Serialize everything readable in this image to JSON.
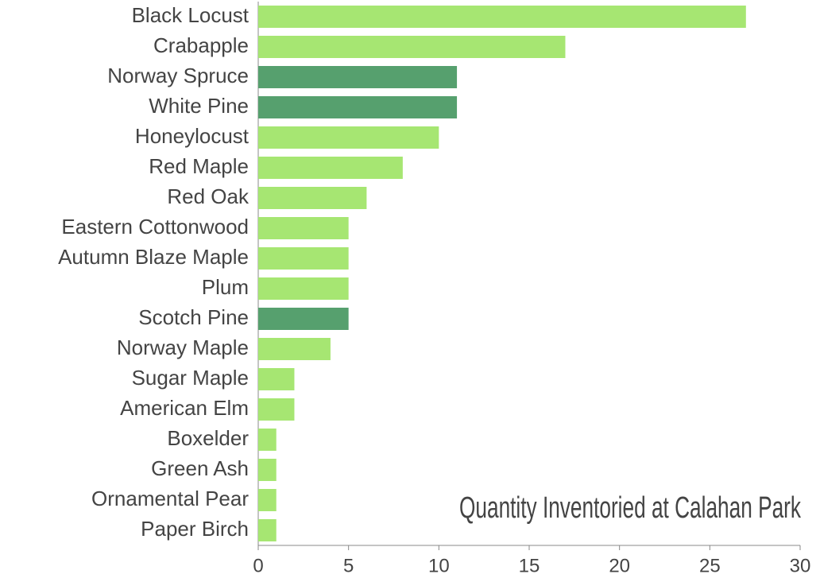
{
  "chart_data": {
    "type": "barh",
    "title": "Quantity Inventoried at Calahan Park",
    "categories": [
      "Black Locust",
      "Crabapple",
      "Norway Spruce",
      "White Pine",
      "Honeylocust",
      "Red Maple",
      "Red Oak",
      "Eastern Cottonwood",
      "Autumn Blaze Maple",
      "Plum",
      "Scotch Pine",
      "Norway Maple",
      "Sugar Maple",
      "American Elm",
      "Boxelder",
      "Green Ash",
      "Ornamental Pear",
      "Paper Birch"
    ],
    "values": [
      27,
      17,
      11,
      11,
      10,
      8,
      6,
      5,
      5,
      5,
      5,
      4,
      2,
      2,
      1,
      1,
      1,
      1
    ],
    "colors": [
      "#a6e672",
      "#a6e672",
      "#56a06e",
      "#56a06e",
      "#a6e672",
      "#a6e672",
      "#a6e672",
      "#a6e672",
      "#a6e672",
      "#a6e672",
      "#56a06e",
      "#a6e672",
      "#a6e672",
      "#a6e672",
      "#a6e672",
      "#a6e672",
      "#a6e672",
      "#a6e672"
    ],
    "xlim": [
      0,
      30
    ],
    "xticks": [
      0,
      5,
      10,
      15,
      20,
      25,
      30
    ],
    "grid": false
  }
}
